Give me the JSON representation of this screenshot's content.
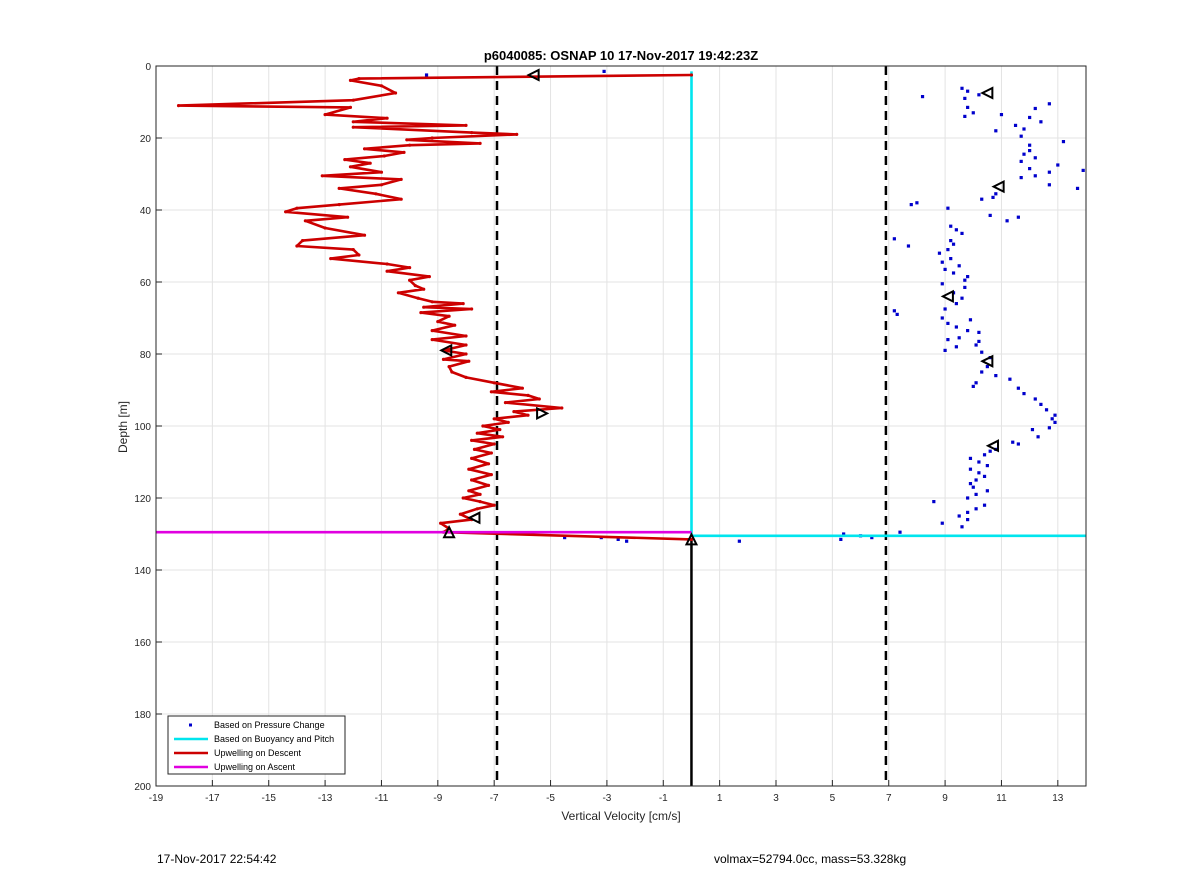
{
  "chart_data": {
    "type": "line",
    "title": "p6040085: OSNAP 10 17-Nov-2017 19:42:23Z",
    "xlabel": "Vertical Velocity [cm/s]",
    "ylabel": "Depth [m]",
    "xlim": [
      -19,
      14
    ],
    "ylim": [
      0,
      200
    ],
    "y_reversed": true,
    "grid": true,
    "x_ticks": [
      -19,
      -17,
      -15,
      -13,
      -11,
      -9,
      -7,
      -5,
      -3,
      -1,
      1,
      3,
      5,
      7,
      9,
      11,
      13
    ],
    "y_ticks": [
      0,
      20,
      40,
      60,
      80,
      100,
      120,
      140,
      160,
      180,
      200
    ],
    "legend_location": "bottom-left",
    "series": [
      {
        "name": "Based on Pressure Change",
        "style": "points",
        "color": "#0000cc",
        "points": [
          [
            -9.4,
            2.5
          ],
          [
            -3.1,
            1.5
          ],
          [
            9.6,
            6.2
          ],
          [
            9.8,
            7.0
          ],
          [
            8.2,
            8.5
          ],
          [
            9.7,
            9.0
          ],
          [
            10.2,
            8.0
          ],
          [
            12.7,
            10.5
          ],
          [
            9.8,
            11.5
          ],
          [
            12.2,
            11.8
          ],
          [
            10.0,
            13.0
          ],
          [
            11.0,
            13.5
          ],
          [
            9.7,
            14.0
          ],
          [
            12.0,
            14.3
          ],
          [
            12.4,
            15.5
          ],
          [
            11.5,
            16.5
          ],
          [
            10.8,
            18.0
          ],
          [
            11.8,
            17.5
          ],
          [
            11.7,
            19.5
          ],
          [
            13.2,
            21.0
          ],
          [
            12.0,
            22.0
          ],
          [
            12.0,
            23.5
          ],
          [
            11.8,
            24.5
          ],
          [
            12.2,
            25.5
          ],
          [
            11.7,
            26.5
          ],
          [
            13.0,
            27.5
          ],
          [
            12.0,
            28.5
          ],
          [
            13.9,
            29.0
          ],
          [
            12.7,
            29.5
          ],
          [
            12.2,
            30.5
          ],
          [
            12.7,
            33.0
          ],
          [
            13.7,
            34.0
          ],
          [
            11.7,
            31.0
          ],
          [
            10.8,
            35.5
          ],
          [
            10.3,
            37.0
          ],
          [
            10.7,
            36.5
          ],
          [
            8.0,
            38.0
          ],
          [
            7.8,
            38.5
          ],
          [
            9.1,
            39.5
          ],
          [
            10.6,
            41.5
          ],
          [
            11.6,
            42.0
          ],
          [
            11.2,
            43.0
          ],
          [
            9.2,
            44.5
          ],
          [
            9.4,
            45.5
          ],
          [
            9.6,
            46.5
          ],
          [
            7.2,
            48.0
          ],
          [
            9.2,
            48.5
          ],
          [
            9.3,
            49.5
          ],
          [
            7.7,
            50.0
          ],
          [
            9.1,
            51.0
          ],
          [
            8.8,
            52.0
          ],
          [
            9.2,
            53.5
          ],
          [
            8.9,
            54.5
          ],
          [
            9.5,
            55.5
          ],
          [
            9.0,
            56.5
          ],
          [
            9.3,
            57.5
          ],
          [
            9.8,
            58.5
          ],
          [
            9.7,
            59.5
          ],
          [
            8.9,
            60.5
          ],
          [
            9.7,
            61.5
          ],
          [
            9.3,
            63.0
          ],
          [
            9.6,
            64.5
          ],
          [
            9.4,
            66.0
          ],
          [
            9.0,
            67.5
          ],
          [
            7.2,
            68.0
          ],
          [
            7.3,
            69.0
          ],
          [
            8.9,
            70.0
          ],
          [
            9.9,
            70.5
          ],
          [
            9.1,
            71.5
          ],
          [
            9.4,
            72.5
          ],
          [
            9.8,
            73.5
          ],
          [
            10.2,
            74.0
          ],
          [
            9.5,
            75.5
          ],
          [
            9.1,
            76.0
          ],
          [
            10.2,
            76.5
          ],
          [
            10.1,
            77.5
          ],
          [
            9.4,
            78.0
          ],
          [
            9.0,
            79.0
          ],
          [
            10.3,
            79.5
          ],
          [
            10.6,
            81.0
          ],
          [
            10.5,
            83.5
          ],
          [
            10.3,
            85.0
          ],
          [
            10.8,
            86.0
          ],
          [
            11.3,
            87.0
          ],
          [
            10.1,
            88.0
          ],
          [
            10.0,
            89.0
          ],
          [
            11.6,
            89.5
          ],
          [
            11.8,
            91.0
          ],
          [
            12.2,
            92.5
          ],
          [
            12.4,
            94.0
          ],
          [
            12.6,
            95.5
          ],
          [
            12.9,
            97.0
          ],
          [
            12.8,
            98.0
          ],
          [
            12.9,
            99.0
          ],
          [
            12.7,
            100.5
          ],
          [
            12.1,
            101.0
          ],
          [
            12.3,
            103.0
          ],
          [
            11.4,
            104.5
          ],
          [
            11.6,
            105.0
          ],
          [
            10.8,
            106.5
          ],
          [
            10.6,
            107.0
          ],
          [
            10.4,
            108.0
          ],
          [
            9.9,
            109.0
          ],
          [
            10.2,
            110.0
          ],
          [
            10.5,
            111.0
          ],
          [
            9.9,
            112.0
          ],
          [
            10.2,
            113.0
          ],
          [
            10.4,
            114.0
          ],
          [
            10.1,
            115.0
          ],
          [
            9.9,
            116.0
          ],
          [
            10.0,
            117.0
          ],
          [
            10.5,
            118.0
          ],
          [
            10.1,
            119.0
          ],
          [
            9.8,
            120.0
          ],
          [
            8.6,
            121.0
          ],
          [
            10.4,
            122.0
          ],
          [
            10.1,
            123.0
          ],
          [
            9.8,
            124.0
          ],
          [
            9.5,
            125.0
          ],
          [
            9.8,
            126.0
          ],
          [
            8.9,
            127.0
          ],
          [
            9.6,
            128.0
          ],
          [
            7.4,
            129.5
          ],
          [
            5.4,
            130.0
          ],
          [
            6.4,
            131.0
          ],
          [
            6.0,
            130.5
          ],
          [
            5.3,
            131.5
          ],
          [
            1.7,
            132.0
          ],
          [
            -4.5,
            131.0
          ],
          [
            -3.2,
            131.0
          ],
          [
            -2.6,
            131.5
          ],
          [
            -2.3,
            132.0
          ]
        ]
      },
      {
        "name": "Based on Buoyancy and Pitch",
        "style": "line",
        "color": "#00e5ee",
        "points": [
          [
            0,
            1.5
          ],
          [
            0,
            130.5
          ],
          [
            14,
            130.5
          ]
        ]
      },
      {
        "name": "Upwelling on Descent",
        "style": "line",
        "color": "#cc0000",
        "points": [
          [
            0,
            2.5
          ],
          [
            -11.8,
            3.5
          ],
          [
            -12.1,
            4.0
          ],
          [
            -11.0,
            5.5
          ],
          [
            -10.5,
            7.5
          ],
          [
            -12.0,
            9.5
          ],
          [
            -18.2,
            11.0
          ],
          [
            -12.1,
            11.5
          ],
          [
            -13.0,
            13.5
          ],
          [
            -10.8,
            14.5
          ],
          [
            -12.0,
            15.5
          ],
          [
            -8.0,
            16.5
          ],
          [
            -12.0,
            17.0
          ],
          [
            -7.8,
            18.5
          ],
          [
            -6.2,
            19.0
          ],
          [
            -9.2,
            20.0
          ],
          [
            -10.1,
            20.5
          ],
          [
            -7.5,
            21.5
          ],
          [
            -10.0,
            22.0
          ],
          [
            -11.6,
            23.0
          ],
          [
            -10.2,
            24.0
          ],
          [
            -10.9,
            25.0
          ],
          [
            -12.3,
            26.0
          ],
          [
            -11.4,
            27.0
          ],
          [
            -12.1,
            28.0
          ],
          [
            -11.0,
            29.5
          ],
          [
            -13.1,
            30.5
          ],
          [
            -10.3,
            31.5
          ],
          [
            -11.0,
            33.0
          ],
          [
            -12.5,
            34.0
          ],
          [
            -11.2,
            35.5
          ],
          [
            -10.3,
            37.0
          ],
          [
            -12.5,
            38.5
          ],
          [
            -14.0,
            39.5
          ],
          [
            -14.4,
            40.5
          ],
          [
            -12.2,
            42.0
          ],
          [
            -13.7,
            43.0
          ],
          [
            -13.0,
            45.0
          ],
          [
            -11.6,
            47.0
          ],
          [
            -13.8,
            48.5
          ],
          [
            -14.0,
            50.0
          ],
          [
            -12.0,
            51.0
          ],
          [
            -11.8,
            52.5
          ],
          [
            -12.8,
            53.5
          ],
          [
            -10.8,
            55.0
          ],
          [
            -10.0,
            56.0
          ],
          [
            -10.8,
            57.0
          ],
          [
            -9.3,
            58.5
          ],
          [
            -10.0,
            59.5
          ],
          [
            -9.8,
            61.0
          ],
          [
            -9.5,
            62.0
          ],
          [
            -10.4,
            63.0
          ],
          [
            -9.7,
            64.5
          ],
          [
            -9.2,
            65.5
          ],
          [
            -8.1,
            66.0
          ],
          [
            -9.5,
            67.0
          ],
          [
            -7.8,
            67.5
          ],
          [
            -9.6,
            68.5
          ],
          [
            -8.6,
            69.5
          ],
          [
            -9.0,
            71.0
          ],
          [
            -8.4,
            72.0
          ],
          [
            -9.2,
            73.5
          ],
          [
            -8.0,
            75.0
          ],
          [
            -9.2,
            76.0
          ],
          [
            -8.0,
            77.5
          ],
          [
            -8.8,
            79.0
          ],
          [
            -8.0,
            80.0
          ],
          [
            -8.8,
            81.5
          ],
          [
            -7.9,
            82.0
          ],
          [
            -8.6,
            83.5
          ],
          [
            -8.5,
            85.0
          ],
          [
            -8.0,
            86.5
          ],
          [
            -7.0,
            88.0
          ],
          [
            -6.0,
            89.5
          ],
          [
            -7.1,
            90.5
          ],
          [
            -5.8,
            91.5
          ],
          [
            -5.4,
            92.5
          ],
          [
            -6.6,
            93.5
          ],
          [
            -4.6,
            95.0
          ],
          [
            -6.3,
            96.0
          ],
          [
            -5.8,
            97.0
          ],
          [
            -7.0,
            98.0
          ],
          [
            -6.5,
            99.0
          ],
          [
            -7.4,
            100.0
          ],
          [
            -6.8,
            101.0
          ],
          [
            -7.6,
            102.0
          ],
          [
            -6.7,
            103.0
          ],
          [
            -7.8,
            104.0
          ],
          [
            -7.0,
            105.0
          ],
          [
            -7.7,
            106.5
          ],
          [
            -7.1,
            107.5
          ],
          [
            -7.8,
            109.0
          ],
          [
            -7.2,
            110.5
          ],
          [
            -7.9,
            112.0
          ],
          [
            -7.1,
            113.5
          ],
          [
            -7.8,
            115.0
          ],
          [
            -7.2,
            116.5
          ],
          [
            -7.9,
            118.0
          ],
          [
            -7.5,
            119.0
          ],
          [
            -8.1,
            120.0
          ],
          [
            -7.5,
            121.0
          ],
          [
            -7.0,
            122.0
          ],
          [
            -7.6,
            123.0
          ],
          [
            -8.2,
            124.5
          ],
          [
            -7.8,
            126.0
          ],
          [
            -8.9,
            127.0
          ],
          [
            -8.6,
            128.5
          ],
          [
            -8.8,
            129.5
          ],
          [
            0,
            131.5
          ]
        ]
      },
      {
        "name": "Upwelling on Ascent",
        "style": "line",
        "color": "#e000e0",
        "points": [
          [
            -19,
            129.5
          ],
          [
            0,
            129.5
          ]
        ]
      }
    ],
    "reference_lines": [
      {
        "x": -6.9,
        "style": "dashed",
        "color": "#000000"
      },
      {
        "x": 6.9,
        "style": "dashed",
        "color": "#000000"
      },
      {
        "x": 0,
        "from_depth": 131.5,
        "to_depth": 200,
        "style": "solid",
        "color": "#000000"
      }
    ],
    "markers": [
      {
        "shape": "triangle-left",
        "x": -5.6,
        "y": 2.5
      },
      {
        "shape": "triangle-left",
        "x": 10.5,
        "y": 7.5
      },
      {
        "shape": "triangle-left",
        "x": 10.9,
        "y": 33.5
      },
      {
        "shape": "triangle-left",
        "x": 9.1,
        "y": 64.0
      },
      {
        "shape": "triangle-left",
        "x": 10.5,
        "y": 82.0
      },
      {
        "shape": "triangle-left",
        "x": -8.7,
        "y": 79.0
      },
      {
        "shape": "triangle-right",
        "x": -5.3,
        "y": 96.5
      },
      {
        "shape": "triangle-left",
        "x": 10.7,
        "y": 105.5
      },
      {
        "shape": "triangle-left",
        "x": -7.7,
        "y": 125.5
      },
      {
        "shape": "triangle-up",
        "x": -8.6,
        "y": 129.5
      },
      {
        "shape": "triangle-up",
        "x": 0,
        "y": 131.5
      }
    ]
  },
  "footer": {
    "timestamp": "17-Nov-2017 22:54:42",
    "info": "volmax=52794.0cc, mass=53.328kg"
  }
}
